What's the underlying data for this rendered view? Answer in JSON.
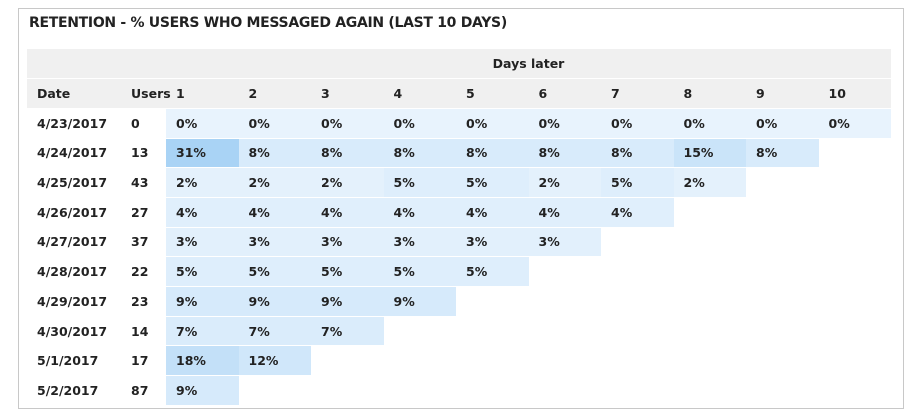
{
  "title": "RETENTION - % USERS WHO MESSAGED AGAIN (LAST 10 DAYS)",
  "table": {
    "group_header": "Days later",
    "columns": [
      "Date",
      "Users",
      "1",
      "2",
      "3",
      "4",
      "5",
      "6",
      "7",
      "8",
      "9",
      "10"
    ],
    "rows": [
      [
        "4/23/2017",
        "0",
        "0%",
        "0%",
        "0%",
        "0%",
        "0%",
        "0%",
        "0%",
        "0%",
        "0%",
        "0%"
      ],
      [
        "4/24/2017",
        "13",
        "31%",
        "8%",
        "8%",
        "8%",
        "8%",
        "8%",
        "8%",
        "15%",
        "8%"
      ],
      [
        "4/25/2017",
        "43",
        "2%",
        "2%",
        "2%",
        "5%",
        "5%",
        "2%",
        "5%",
        "2%"
      ],
      [
        "4/26/2017",
        "27",
        "4%",
        "4%",
        "4%",
        "4%",
        "4%",
        "4%",
        "4%"
      ],
      [
        "4/27/2017",
        "37",
        "3%",
        "3%",
        "3%",
        "3%",
        "3%",
        "3%"
      ],
      [
        "4/28/2017",
        "22",
        "5%",
        "5%",
        "5%",
        "5%",
        "5%"
      ],
      [
        "4/29/2017",
        "23",
        "9%",
        "9%",
        "9%",
        "9%"
      ],
      [
        "4/30/2017",
        "14",
        "7%",
        "7%",
        "7%"
      ],
      [
        "5/1/2017",
        "17",
        "18%",
        "12%"
      ],
      [
        "5/2/2017",
        "87",
        "9%"
      ]
    ]
  }
}
